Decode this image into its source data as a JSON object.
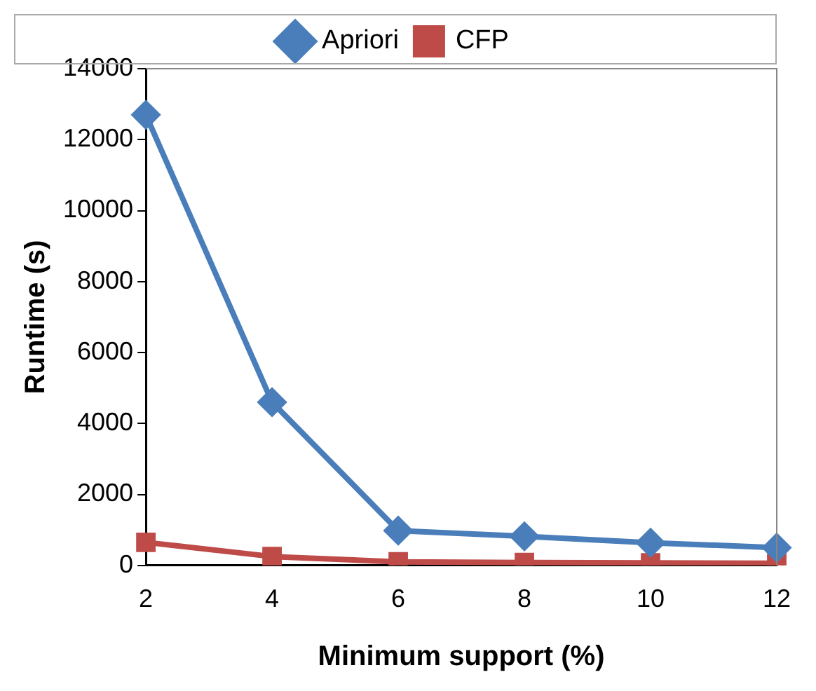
{
  "chart_data": {
    "type": "line",
    "xlabel": "Minimum support (%)",
    "ylabel": "Runtime (s)",
    "categories": [
      "2",
      "4",
      "6",
      "8",
      "10",
      "12"
    ],
    "series": [
      {
        "name": "Apriori",
        "color": "#4a7ebb",
        "marker": "diamond",
        "values": [
          12700,
          4600,
          980,
          820,
          640,
          500
        ]
      },
      {
        "name": "CFP",
        "color": "#be4b48",
        "marker": "square",
        "values": [
          650,
          250,
          100,
          80,
          70,
          60
        ]
      }
    ],
    "ylim": [
      0,
      14000
    ],
    "yticks": [
      0,
      2000,
      4000,
      6000,
      8000,
      10000,
      12000,
      14000
    ],
    "grid": false,
    "legend": "top"
  }
}
